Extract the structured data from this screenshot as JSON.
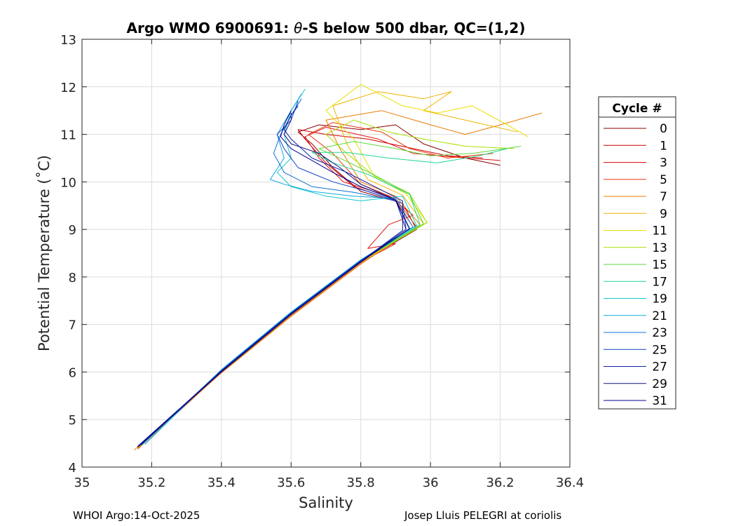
{
  "chart_data": {
    "type": "line",
    "title": "Argo WMO 6900691: θ-S below 500 dbar,  QC=(1,2)",
    "title_theta": "θ",
    "xlabel": "Salinity",
    "ylabel": "Potential Temperature (˚C)",
    "xlim": [
      35,
      36.4
    ],
    "ylim": [
      4,
      13
    ],
    "xticks": [
      35,
      35.2,
      35.4,
      35.6,
      35.8,
      36,
      36.2,
      36.4
    ],
    "xtick_labels": [
      "35",
      "35.2",
      "35.4",
      "35.6",
      "35.8",
      "36",
      "36.2",
      "36.4"
    ],
    "yticks": [
      4,
      5,
      6,
      7,
      8,
      9,
      10,
      11,
      12,
      13
    ],
    "ytick_labels": [
      "4",
      "5",
      "6",
      "7",
      "8",
      "9",
      "10",
      "11",
      "12",
      "13"
    ],
    "grid": true,
    "legend_title": "Cycle #",
    "legend_position": "right",
    "series": [
      {
        "name": "0",
        "color": "#8b0000",
        "points": [
          [
            35.16,
            4.4
          ],
          [
            35.4,
            6.0
          ],
          [
            35.6,
            7.2
          ],
          [
            35.8,
            8.3
          ],
          [
            35.96,
            9.0
          ],
          [
            35.92,
            9.55
          ],
          [
            35.8,
            9.8
          ],
          [
            35.72,
            10.3
          ],
          [
            35.66,
            10.8
          ],
          [
            35.62,
            11.05
          ],
          [
            35.68,
            11.2
          ],
          [
            35.8,
            11.1
          ],
          [
            35.9,
            11.2
          ],
          [
            35.98,
            10.8
          ],
          [
            36.1,
            10.5
          ],
          [
            36.2,
            10.35
          ]
        ]
      },
      {
        "name": "1",
        "color": "#cc0000",
        "points": [
          [
            35.16,
            4.42
          ],
          [
            35.4,
            6.02
          ],
          [
            35.6,
            7.22
          ],
          [
            35.8,
            8.32
          ],
          [
            35.95,
            9.05
          ],
          [
            35.9,
            9.6
          ],
          [
            35.78,
            9.9
          ],
          [
            35.7,
            10.4
          ],
          [
            35.64,
            10.9
          ],
          [
            35.62,
            11.1
          ],
          [
            35.7,
            11.0
          ],
          [
            35.82,
            10.9
          ],
          [
            35.95,
            10.7
          ],
          [
            36.05,
            10.55
          ],
          [
            36.15,
            10.5
          ]
        ]
      },
      {
        "name": "3",
        "color": "#e01010",
        "points": [
          [
            35.16,
            4.41
          ],
          [
            35.4,
            6.01
          ],
          [
            35.6,
            7.21
          ],
          [
            35.8,
            8.31
          ],
          [
            35.9,
            8.7
          ],
          [
            35.82,
            8.6
          ],
          [
            35.88,
            9.1
          ],
          [
            35.95,
            9.3
          ],
          [
            35.88,
            9.7
          ],
          [
            35.75,
            10.0
          ],
          [
            35.68,
            10.5
          ],
          [
            35.64,
            10.95
          ],
          [
            35.7,
            11.15
          ],
          [
            35.85,
            10.9
          ],
          [
            35.95,
            10.6
          ],
          [
            36.1,
            10.5
          ],
          [
            36.2,
            10.45
          ]
        ]
      },
      {
        "name": "5",
        "color": "#e83a10",
        "points": [
          [
            35.16,
            4.38
          ],
          [
            35.4,
            5.99
          ],
          [
            35.6,
            7.19
          ],
          [
            35.8,
            8.29
          ],
          [
            35.96,
            9.05
          ],
          [
            35.9,
            9.65
          ],
          [
            35.8,
            9.95
          ],
          [
            35.72,
            10.6
          ],
          [
            35.65,
            11.0
          ],
          [
            35.72,
            11.25
          ],
          [
            35.86,
            11.05
          ],
          [
            35.94,
            10.7
          ],
          [
            36.05,
            10.5
          ],
          [
            36.18,
            10.6
          ]
        ]
      },
      {
        "name": "7",
        "color": "#ee7a00",
        "points": [
          [
            35.15,
            4.36
          ],
          [
            35.4,
            5.98
          ],
          [
            35.6,
            7.17
          ],
          [
            35.8,
            8.27
          ],
          [
            35.97,
            9.1
          ],
          [
            35.9,
            9.7
          ],
          [
            35.8,
            10.0
          ],
          [
            35.74,
            10.7
          ],
          [
            35.7,
            11.3
          ],
          [
            35.86,
            11.5
          ],
          [
            36.0,
            11.2
          ],
          [
            36.1,
            11.0
          ],
          [
            36.2,
            11.2
          ],
          [
            36.32,
            11.45
          ]
        ]
      },
      {
        "name": "9",
        "color": "#f0b400",
        "points": [
          [
            35.16,
            4.4
          ],
          [
            35.4,
            6.0
          ],
          [
            35.6,
            7.2
          ],
          [
            35.8,
            8.3
          ],
          [
            35.98,
            9.12
          ],
          [
            35.92,
            9.72
          ],
          [
            35.82,
            10.05
          ],
          [
            35.76,
            10.8
          ],
          [
            35.72,
            11.6
          ],
          [
            35.85,
            11.9
          ],
          [
            35.98,
            11.75
          ],
          [
            36.06,
            11.9
          ],
          [
            35.98,
            11.5
          ],
          [
            36.1,
            11.3
          ],
          [
            36.25,
            11.05
          ]
        ]
      },
      {
        "name": "11",
        "color": "#e8e000",
        "points": [
          [
            35.17,
            4.45
          ],
          [
            35.4,
            6.03
          ],
          [
            35.6,
            7.24
          ],
          [
            35.8,
            8.34
          ],
          [
            35.99,
            9.15
          ],
          [
            35.93,
            9.75
          ],
          [
            35.84,
            10.1
          ],
          [
            35.78,
            10.9
          ],
          [
            35.7,
            11.5
          ],
          [
            35.8,
            12.05
          ],
          [
            35.92,
            11.6
          ],
          [
            36.02,
            11.45
          ],
          [
            36.12,
            11.6
          ],
          [
            36.22,
            11.2
          ],
          [
            36.28,
            10.95
          ]
        ]
      },
      {
        "name": "13",
        "color": "#a8e000",
        "points": [
          [
            35.17,
            4.45
          ],
          [
            35.4,
            6.03
          ],
          [
            35.6,
            7.23
          ],
          [
            35.8,
            8.33
          ],
          [
            35.99,
            9.14
          ],
          [
            35.94,
            9.76
          ],
          [
            35.84,
            10.12
          ],
          [
            35.76,
            10.6
          ],
          [
            35.7,
            11.0
          ],
          [
            35.78,
            11.3
          ],
          [
            35.88,
            11.05
          ],
          [
            35.98,
            10.9
          ],
          [
            36.1,
            10.75
          ],
          [
            36.24,
            10.7
          ]
        ]
      },
      {
        "name": "15",
        "color": "#5cd83a",
        "points": [
          [
            35.17,
            4.46
          ],
          [
            35.4,
            6.04
          ],
          [
            35.6,
            7.24
          ],
          [
            35.8,
            8.34
          ],
          [
            35.98,
            9.12
          ],
          [
            35.94,
            9.74
          ],
          [
            35.84,
            10.14
          ],
          [
            35.74,
            10.5
          ],
          [
            35.68,
            10.7
          ],
          [
            35.78,
            10.85
          ],
          [
            35.9,
            10.7
          ],
          [
            36.0,
            10.55
          ],
          [
            36.12,
            10.6
          ],
          [
            36.26,
            10.75
          ]
        ]
      },
      {
        "name": "17",
        "color": "#20d890",
        "points": [
          [
            35.17,
            4.46
          ],
          [
            35.4,
            6.04
          ],
          [
            35.6,
            7.25
          ],
          [
            35.8,
            8.34
          ],
          [
            35.97,
            9.1
          ],
          [
            35.94,
            9.74
          ],
          [
            35.82,
            10.16
          ],
          [
            35.72,
            10.4
          ],
          [
            35.66,
            10.62
          ],
          [
            35.76,
            10.62
          ],
          [
            35.88,
            10.5
          ],
          [
            36.02,
            10.4
          ],
          [
            36.14,
            10.55
          ],
          [
            36.22,
            10.7
          ]
        ]
      },
      {
        "name": "19",
        "color": "#10c8d0",
        "points": [
          [
            35.18,
            4.48
          ],
          [
            35.4,
            6.05
          ],
          [
            35.6,
            7.26
          ],
          [
            35.8,
            8.36
          ],
          [
            35.96,
            9.08
          ],
          [
            35.92,
            9.7
          ],
          [
            35.8,
            9.6
          ],
          [
            35.7,
            9.7
          ],
          [
            35.6,
            9.9
          ],
          [
            35.56,
            10.2
          ],
          [
            35.6,
            10.5
          ],
          [
            35.58,
            11.0
          ],
          [
            35.6,
            11.5
          ],
          [
            35.64,
            11.95
          ]
        ]
      },
      {
        "name": "21",
        "color": "#10a8e0",
        "points": [
          [
            35.18,
            4.48
          ],
          [
            35.4,
            6.05
          ],
          [
            35.6,
            7.26
          ],
          [
            35.8,
            8.36
          ],
          [
            35.95,
            9.05
          ],
          [
            35.9,
            9.65
          ],
          [
            35.78,
            9.7
          ],
          [
            35.66,
            9.8
          ],
          [
            35.58,
            9.95
          ],
          [
            35.54,
            10.05
          ],
          [
            35.58,
            10.5
          ],
          [
            35.56,
            11.0
          ],
          [
            35.6,
            11.5
          ],
          [
            35.63,
            11.85
          ]
        ]
      },
      {
        "name": "23",
        "color": "#1070d0",
        "points": [
          [
            35.17,
            4.47
          ],
          [
            35.4,
            6.04
          ],
          [
            35.6,
            7.25
          ],
          [
            35.8,
            8.35
          ],
          [
            35.94,
            9.0
          ],
          [
            35.9,
            9.6
          ],
          [
            35.78,
            9.78
          ],
          [
            35.66,
            9.9
          ],
          [
            35.58,
            10.2
          ],
          [
            35.55,
            10.6
          ],
          [
            35.57,
            11.0
          ],
          [
            35.6,
            11.4
          ],
          [
            35.63,
            11.75
          ]
        ]
      },
      {
        "name": "25",
        "color": "#1040c8",
        "points": [
          [
            35.17,
            4.46
          ],
          [
            35.4,
            6.03
          ],
          [
            35.6,
            7.24
          ],
          [
            35.8,
            8.34
          ],
          [
            35.93,
            9.0
          ],
          [
            35.92,
            9.55
          ],
          [
            35.82,
            9.8
          ],
          [
            35.72,
            10.0
          ],
          [
            35.62,
            10.3
          ],
          [
            35.58,
            10.7
          ],
          [
            35.56,
            11.0
          ],
          [
            35.6,
            11.3
          ],
          [
            35.62,
            11.7
          ]
        ]
      },
      {
        "name": "27",
        "color": "#1020a8",
        "points": [
          [
            35.16,
            4.44
          ],
          [
            35.4,
            6.02
          ],
          [
            35.6,
            7.23
          ],
          [
            35.8,
            8.33
          ],
          [
            35.92,
            8.98
          ],
          [
            35.92,
            9.6
          ],
          [
            35.84,
            9.9
          ],
          [
            35.76,
            10.2
          ],
          [
            35.66,
            10.5
          ],
          [
            35.6,
            10.9
          ],
          [
            35.58,
            11.1
          ],
          [
            35.6,
            11.4
          ],
          [
            35.62,
            11.6
          ]
        ]
      },
      {
        "name": "29",
        "color": "#101080",
        "points": [
          [
            35.16,
            4.43
          ],
          [
            35.4,
            6.01
          ],
          [
            35.6,
            7.22
          ],
          [
            35.8,
            8.32
          ],
          [
            35.93,
            9.0
          ],
          [
            35.9,
            9.62
          ],
          [
            35.8,
            9.95
          ],
          [
            35.74,
            10.3
          ],
          [
            35.68,
            10.6
          ],
          [
            35.6,
            10.8
          ],
          [
            35.58,
            11.0
          ],
          [
            35.6,
            11.3
          ],
          [
            35.6,
            11.45
          ]
        ]
      },
      {
        "name": "31",
        "color": "#000090",
        "points": [
          [
            35.16,
            4.42
          ],
          [
            35.4,
            6.0
          ],
          [
            35.6,
            7.21
          ],
          [
            35.8,
            8.31
          ],
          [
            35.94,
            9.02
          ],
          [
            35.9,
            9.62
          ],
          [
            35.8,
            9.9
          ],
          [
            35.72,
            10.2
          ],
          [
            35.66,
            10.45
          ],
          [
            35.6,
            10.7
          ],
          [
            35.57,
            10.95
          ],
          [
            35.58,
            11.2
          ],
          [
            35.6,
            11.5
          ]
        ]
      }
    ]
  },
  "footer": {
    "left": "WHOI Argo:14-Oct-2025",
    "right": "Josep Lluis PELEGRI at coriolis"
  }
}
